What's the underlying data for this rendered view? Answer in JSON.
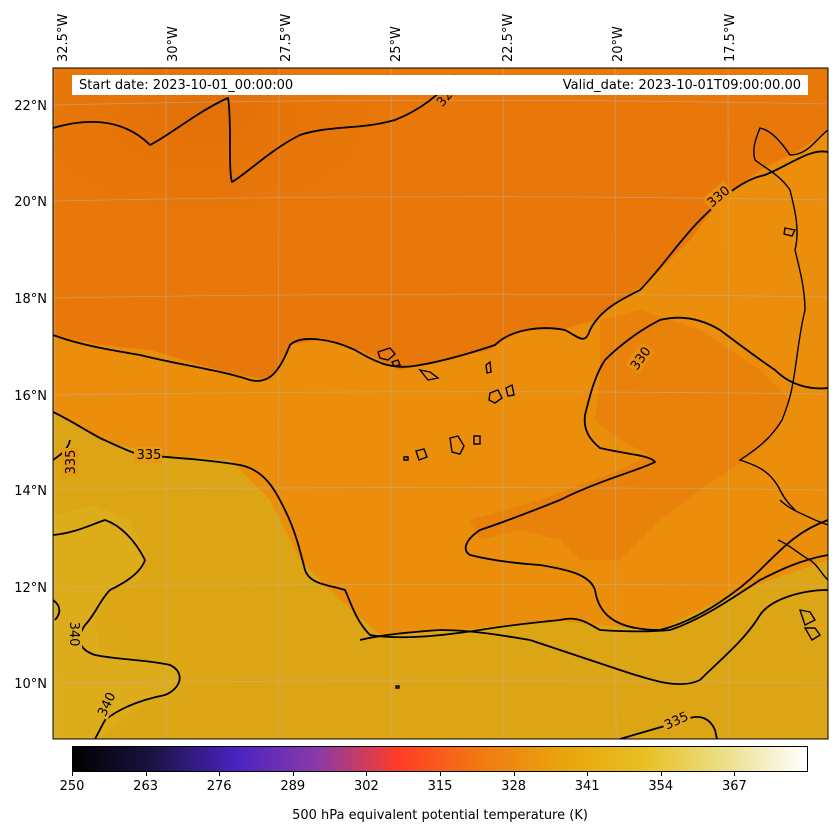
{
  "header": {
    "start_label": "Start date: 2023-10-01_00:00:00",
    "valid_label": "Valid_date: 2023-10-01T09:00:00.00"
  },
  "map": {
    "lon_labels": [
      "32.5°W",
      "30°W",
      "27.5°W",
      "25°W",
      "22.5°W",
      "20°W",
      "17.5°W"
    ],
    "lat_labels": [
      "22°N",
      "20°N",
      "18°N",
      "16°N",
      "14°N",
      "12°N",
      "10°N"
    ],
    "contour_labels": [
      "330",
      "330",
      "335",
      "335",
      "340",
      "340",
      "335",
      "32"
    ],
    "field_colors": {
      "cool": "#e8780a",
      "mid": "#ea8e0b",
      "warm": "#dca515",
      "contour": "#000000"
    }
  },
  "colorbar": {
    "ticks": [
      "250",
      "263",
      "276",
      "289",
      "302",
      "315",
      "328",
      "341",
      "354",
      "367"
    ],
    "title": "500 hPa equivalent potential temperature (K)",
    "gradient": [
      "#000000",
      "#1c1345",
      "#4a23c2",
      "#8a3aa8",
      "#ff3d25",
      "#f07a10",
      "#eaa40e",
      "#e8c020",
      "#ecdf8a",
      "#ffffff"
    ]
  }
}
